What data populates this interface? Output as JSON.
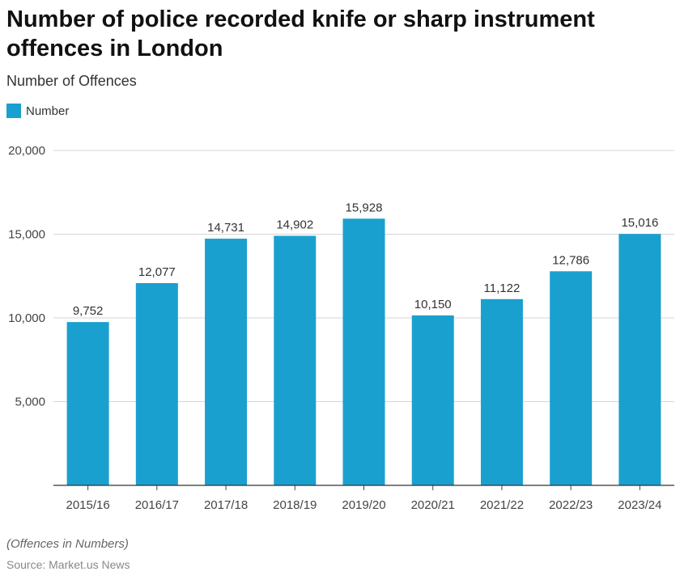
{
  "chart_data": {
    "type": "bar",
    "title": "Number of police recorded knife or sharp instrument offences in London",
    "subtitle": "Number of Offences",
    "categories": [
      "2015/16",
      "2016/17",
      "2017/18",
      "2018/19",
      "2019/20",
      "2020/21",
      "2021/22",
      "2022/23",
      "2023/24"
    ],
    "series": [
      {
        "name": "Number",
        "values": [
          9752,
          12077,
          14731,
          14902,
          15928,
          10150,
          11122,
          12786,
          15016
        ],
        "color": "#1aa0cf"
      }
    ],
    "data_labels": [
      "9,752",
      "12,077",
      "14,731",
      "14,902",
      "15,928",
      "10,150",
      "11,122",
      "12,786",
      "15,016"
    ],
    "ylim": [
      0,
      20000
    ],
    "yticks": [
      5000,
      10000,
      15000,
      20000
    ],
    "ytick_labels": [
      "5,000",
      "10,000",
      "15,000",
      "20,000"
    ],
    "grid": true,
    "legend": "top-left"
  },
  "footnote": "(Offences in Numbers)",
  "source": "Source: Market.us News"
}
